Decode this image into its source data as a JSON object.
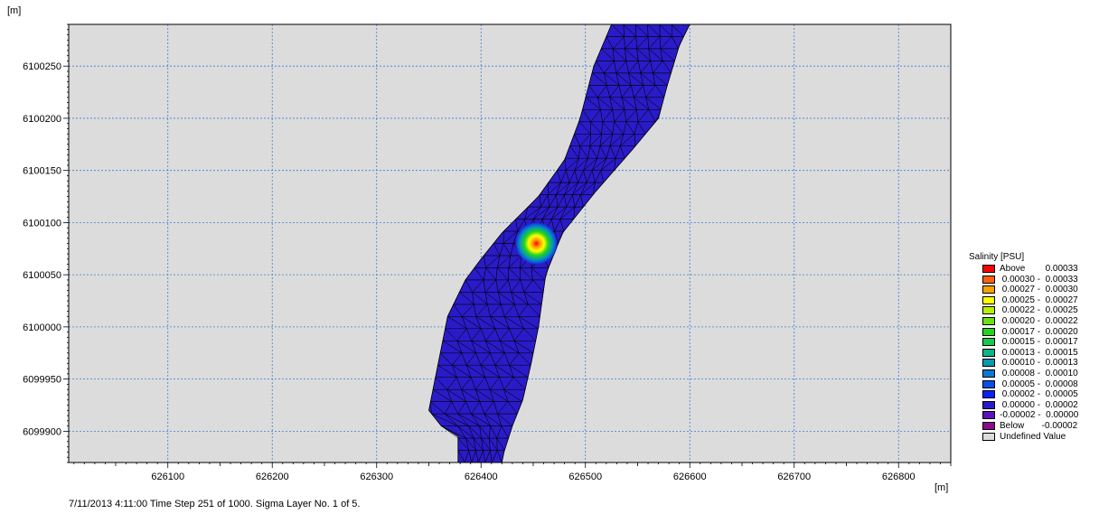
{
  "window": {
    "status_text": "7/11/2013 4:11:00  Time Step 251 of 1000. Sigma Layer No. 1 of 5."
  },
  "chart_data": {
    "type": "heatmap",
    "x_unit_label": "[m]",
    "y_unit_label": "[m]",
    "xlim": [
      626005,
      626850
    ],
    "ylim": [
      6099870,
      6100290
    ],
    "x_ticks": [
      626100,
      626200,
      626300,
      626400,
      626500,
      626600,
      626700,
      626800
    ],
    "y_ticks": [
      6099900,
      6099950,
      6100000,
      6100050,
      6100100,
      6100150,
      6100200,
      6100250
    ],
    "grid": true,
    "background_color": "#dcdcdc",
    "grid_color": "#3a7fd0",
    "river_color": "#2a1bc8",
    "mesh_color": "#000000",
    "plume": {
      "x": 626453,
      "y": 6100080,
      "peak_salinity": 0.00033
    },
    "river_left_bank": [
      [
        626525,
        6100290
      ],
      [
        626508,
        6100250
      ],
      [
        626495,
        6100200
      ],
      [
        626480,
        6100160
      ],
      [
        626455,
        6100125
      ],
      [
        626420,
        6100090
      ],
      [
        626400,
        6100065
      ],
      [
        626385,
        6100045
      ],
      [
        626368,
        6100010
      ],
      [
        626358,
        6099960
      ],
      [
        626350,
        6099920
      ],
      [
        626362,
        6099905
      ],
      [
        626378,
        6099895
      ],
      [
        626378,
        6099870
      ]
    ],
    "river_right_bank": [
      [
        626420,
        6099870
      ],
      [
        626422,
        6099880
      ],
      [
        626430,
        6099905
      ],
      [
        626440,
        6099930
      ],
      [
        626448,
        6099965
      ],
      [
        626455,
        6100000
      ],
      [
        626462,
        6100050
      ],
      [
        626478,
        6100090
      ],
      [
        626510,
        6100130
      ],
      [
        626545,
        6100170
      ],
      [
        626570,
        6100200
      ],
      [
        626578,
        6100230
      ],
      [
        626590,
        6100270
      ],
      [
        626600,
        6100290
      ]
    ],
    "legend": {
      "title": "Salinity [PSU]",
      "placement": "right",
      "entries": [
        {
          "label": "Above        0.00033",
          "color": "#ff0000"
        },
        {
          "label": " 0.00030 -  0.00033",
          "color": "#ff6010"
        },
        {
          "label": " 0.00027 -  0.00030",
          "color": "#ffa000"
        },
        {
          "label": " 0.00025 -  0.00027",
          "color": "#ffff00"
        },
        {
          "label": " 0.00022 -  0.00025",
          "color": "#b8f000"
        },
        {
          "label": " 0.00020 -  0.00022",
          "color": "#6be010"
        },
        {
          "label": " 0.00017 -  0.00020",
          "color": "#22d41e"
        },
        {
          "label": " 0.00015 -  0.00017",
          "color": "#14c850"
        },
        {
          "label": " 0.00013 -  0.00015",
          "color": "#10b488"
        },
        {
          "label": " 0.00010 -  0.00013",
          "color": "#0898b0"
        },
        {
          "label": " 0.00008 -  0.00010",
          "color": "#0878d0"
        },
        {
          "label": " 0.00005 -  0.00008",
          "color": "#0a4ee8"
        },
        {
          "label": " 0.00002 -  0.00005",
          "color": "#0a20ff"
        },
        {
          "label": " 0.00000 -  0.00002",
          "color": "#2a1bc8"
        },
        {
          "label": "-0.00002 -  0.00000",
          "color": "#5e12b8"
        },
        {
          "label": "Below       -0.00002",
          "color": "#8a0a8a"
        },
        {
          "label": "Undefined Value",
          "color": "#dcdcdc"
        }
      ]
    }
  }
}
